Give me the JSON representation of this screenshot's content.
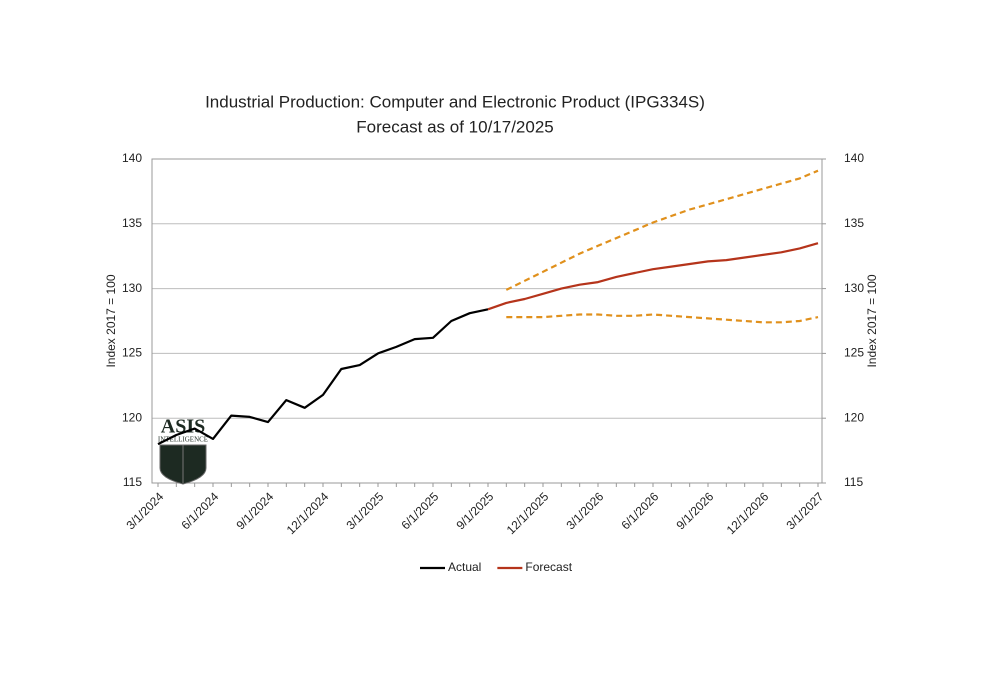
{
  "chart_data": {
    "type": "line",
    "title": "Industrial Production: Computer and Electronic Product (IPG334S)",
    "subtitle": "Forecast as of 10/17/2025",
    "y_label": "Index 2017 = 100",
    "y2_label": "Index 2017 = 100",
    "logo": {
      "name": "ASIS",
      "tagline": "INTELLIGENCE"
    },
    "categories": [
      "3/1/2024",
      null,
      null,
      "6/1/2024",
      null,
      null,
      "9/1/2024",
      null,
      null,
      "12/1/2024",
      null,
      null,
      "3/1/2025",
      null,
      null,
      "6/1/2025",
      null,
      null,
      "9/1/2025",
      null,
      null,
      "12/1/2025",
      null,
      null,
      "3/1/2026",
      null,
      null,
      "6/1/2026",
      null,
      null,
      "9/1/2026",
      null,
      null,
      "12/1/2026",
      null,
      null,
      "3/1/2027"
    ],
    "ylim": [
      115,
      140
    ],
    "yticks": [
      115,
      120,
      125,
      130,
      135,
      140
    ],
    "y2lim": [
      115,
      140
    ],
    "y2ticks": [
      115,
      120,
      125,
      130,
      135,
      140
    ],
    "grid": true,
    "legend": "bottom",
    "series": [
      {
        "name": "Actual",
        "color": "#000000",
        "dash": false,
        "values": [
          118.0,
          118.7,
          119.2,
          118.4,
          120.2,
          120.1,
          119.7,
          121.4,
          120.8,
          121.8,
          123.8,
          124.1,
          125.0,
          125.5,
          126.1,
          126.2,
          127.5,
          128.1,
          128.4,
          null,
          null,
          null,
          null,
          null,
          null,
          null,
          null,
          null,
          null,
          null,
          null,
          null,
          null,
          null,
          null,
          null,
          null
        ]
      },
      {
        "name": "Forecast",
        "color": "#b5341b",
        "dash": false,
        "values": [
          null,
          null,
          null,
          null,
          null,
          null,
          null,
          null,
          null,
          null,
          null,
          null,
          null,
          null,
          null,
          null,
          null,
          null,
          128.4,
          128.9,
          129.2,
          129.6,
          130.0,
          130.3,
          130.5,
          130.9,
          131.2,
          131.5,
          131.7,
          131.9,
          132.1,
          132.2,
          132.4,
          132.6,
          132.8,
          133.1,
          133.5
        ]
      },
      {
        "color": "#e0901c",
        "dash": true,
        "values": [
          null,
          null,
          null,
          null,
          null,
          null,
          null,
          null,
          null,
          null,
          null,
          null,
          null,
          null,
          null,
          null,
          null,
          null,
          null,
          129.9,
          130.6,
          131.3,
          132.0,
          132.7,
          133.3,
          133.9,
          134.5,
          135.1,
          135.6,
          136.1,
          136.5,
          136.9,
          137.3,
          137.7,
          138.1,
          138.5,
          139.1
        ]
      },
      {
        "color": "#e0901c",
        "dash": true,
        "values": [
          null,
          null,
          null,
          null,
          null,
          null,
          null,
          null,
          null,
          null,
          null,
          null,
          null,
          null,
          null,
          null,
          null,
          null,
          null,
          127.8,
          127.8,
          127.8,
          127.9,
          128.0,
          128.0,
          127.9,
          127.9,
          128.0,
          127.9,
          127.8,
          127.7,
          127.6,
          127.5,
          127.4,
          127.4,
          127.5,
          127.8
        ]
      }
    ]
  }
}
